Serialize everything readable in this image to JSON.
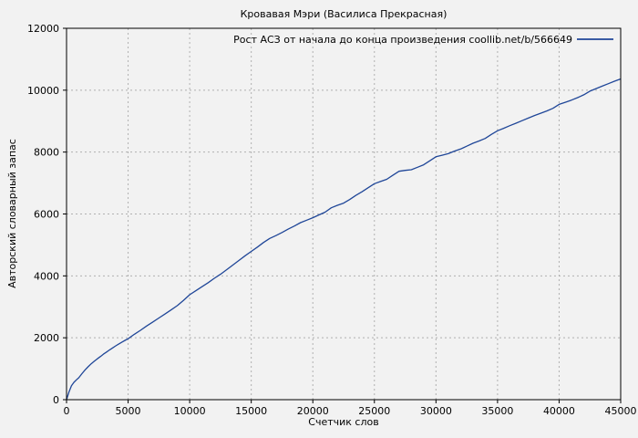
{
  "title": "Кровавая Мэри (Василиса Прекрасная)",
  "chart_data": {
    "type": "line",
    "title": "Кровавая Мэри (Василиса Прекрасная)",
    "xlabel": "Счетчик слов",
    "ylabel": "Авторский словарный запас",
    "xlim": [
      0,
      45000
    ],
    "ylim": [
      0,
      12000
    ],
    "xticks": [
      0,
      5000,
      10000,
      15000,
      20000,
      25000,
      30000,
      35000,
      40000,
      45000
    ],
    "yticks": [
      0,
      2000,
      4000,
      6000,
      8000,
      10000,
      12000
    ],
    "grid": true,
    "grid_color": "#b0b0b0",
    "axis_color": "#000000",
    "background_color": "#f2f2f2",
    "legend_position": "top-right-inside",
    "series": [
      {
        "name": "Рост АСЗ от начала до конца произведения coollib.net/b/566649",
        "color": "#1f4698",
        "points": [
          [
            0,
            0
          ],
          [
            200,
            250
          ],
          [
            400,
            450
          ],
          [
            600,
            560
          ],
          [
            800,
            640
          ],
          [
            1000,
            710
          ],
          [
            1250,
            840
          ],
          [
            1500,
            960
          ],
          [
            1750,
            1060
          ],
          [
            2000,
            1160
          ],
          [
            2250,
            1240
          ],
          [
            2500,
            1320
          ],
          [
            2750,
            1395
          ],
          [
            3000,
            1470
          ],
          [
            3250,
            1540
          ],
          [
            3500,
            1610
          ],
          [
            3750,
            1675
          ],
          [
            4000,
            1740
          ],
          [
            4250,
            1800
          ],
          [
            4500,
            1860
          ],
          [
            4750,
            1915
          ],
          [
            5000,
            1970
          ],
          [
            5500,
            2110
          ],
          [
            6000,
            2240
          ],
          [
            6500,
            2380
          ],
          [
            7000,
            2510
          ],
          [
            7500,
            2640
          ],
          [
            8000,
            2770
          ],
          [
            8500,
            2900
          ],
          [
            9000,
            3040
          ],
          [
            9500,
            3210
          ],
          [
            10000,
            3390
          ],
          [
            10500,
            3520
          ],
          [
            11000,
            3650
          ],
          [
            11500,
            3780
          ],
          [
            12000,
            3920
          ],
          [
            12500,
            4050
          ],
          [
            13000,
            4200
          ],
          [
            13500,
            4350
          ],
          [
            14000,
            4500
          ],
          [
            14500,
            4650
          ],
          [
            15000,
            4790
          ],
          [
            15500,
            4930
          ],
          [
            16000,
            5080
          ],
          [
            16500,
            5210
          ],
          [
            17000,
            5300
          ],
          [
            17500,
            5400
          ],
          [
            18000,
            5510
          ],
          [
            18500,
            5610
          ],
          [
            19000,
            5720
          ],
          [
            19500,
            5800
          ],
          [
            20000,
            5880
          ],
          [
            20500,
            5970
          ],
          [
            21000,
            6060
          ],
          [
            21500,
            6200
          ],
          [
            22000,
            6280
          ],
          [
            22500,
            6350
          ],
          [
            23000,
            6470
          ],
          [
            23500,
            6600
          ],
          [
            24000,
            6720
          ],
          [
            24500,
            6850
          ],
          [
            25000,
            6980
          ],
          [
            25500,
            7050
          ],
          [
            26000,
            7120
          ],
          [
            26500,
            7250
          ],
          [
            27000,
            7380
          ],
          [
            27500,
            7410
          ],
          [
            28000,
            7430
          ],
          [
            28500,
            7510
          ],
          [
            29000,
            7590
          ],
          [
            29500,
            7720
          ],
          [
            30000,
            7850
          ],
          [
            30500,
            7900
          ],
          [
            31000,
            7950
          ],
          [
            31500,
            8030
          ],
          [
            32000,
            8100
          ],
          [
            32500,
            8190
          ],
          [
            33000,
            8285
          ],
          [
            33500,
            8360
          ],
          [
            34000,
            8440
          ],
          [
            34500,
            8570
          ],
          [
            35000,
            8690
          ],
          [
            35500,
            8770
          ],
          [
            36000,
            8855
          ],
          [
            36500,
            8935
          ],
          [
            37000,
            9015
          ],
          [
            37500,
            9100
          ],
          [
            38000,
            9180
          ],
          [
            38500,
            9255
          ],
          [
            39000,
            9330
          ],
          [
            39500,
            9415
          ],
          [
            40000,
            9540
          ],
          [
            40500,
            9610
          ],
          [
            41000,
            9680
          ],
          [
            41500,
            9760
          ],
          [
            42000,
            9850
          ],
          [
            42500,
            9970
          ],
          [
            43000,
            10050
          ],
          [
            43500,
            10130
          ],
          [
            44000,
            10210
          ],
          [
            44500,
            10290
          ],
          [
            45000,
            10365
          ]
        ]
      }
    ]
  }
}
